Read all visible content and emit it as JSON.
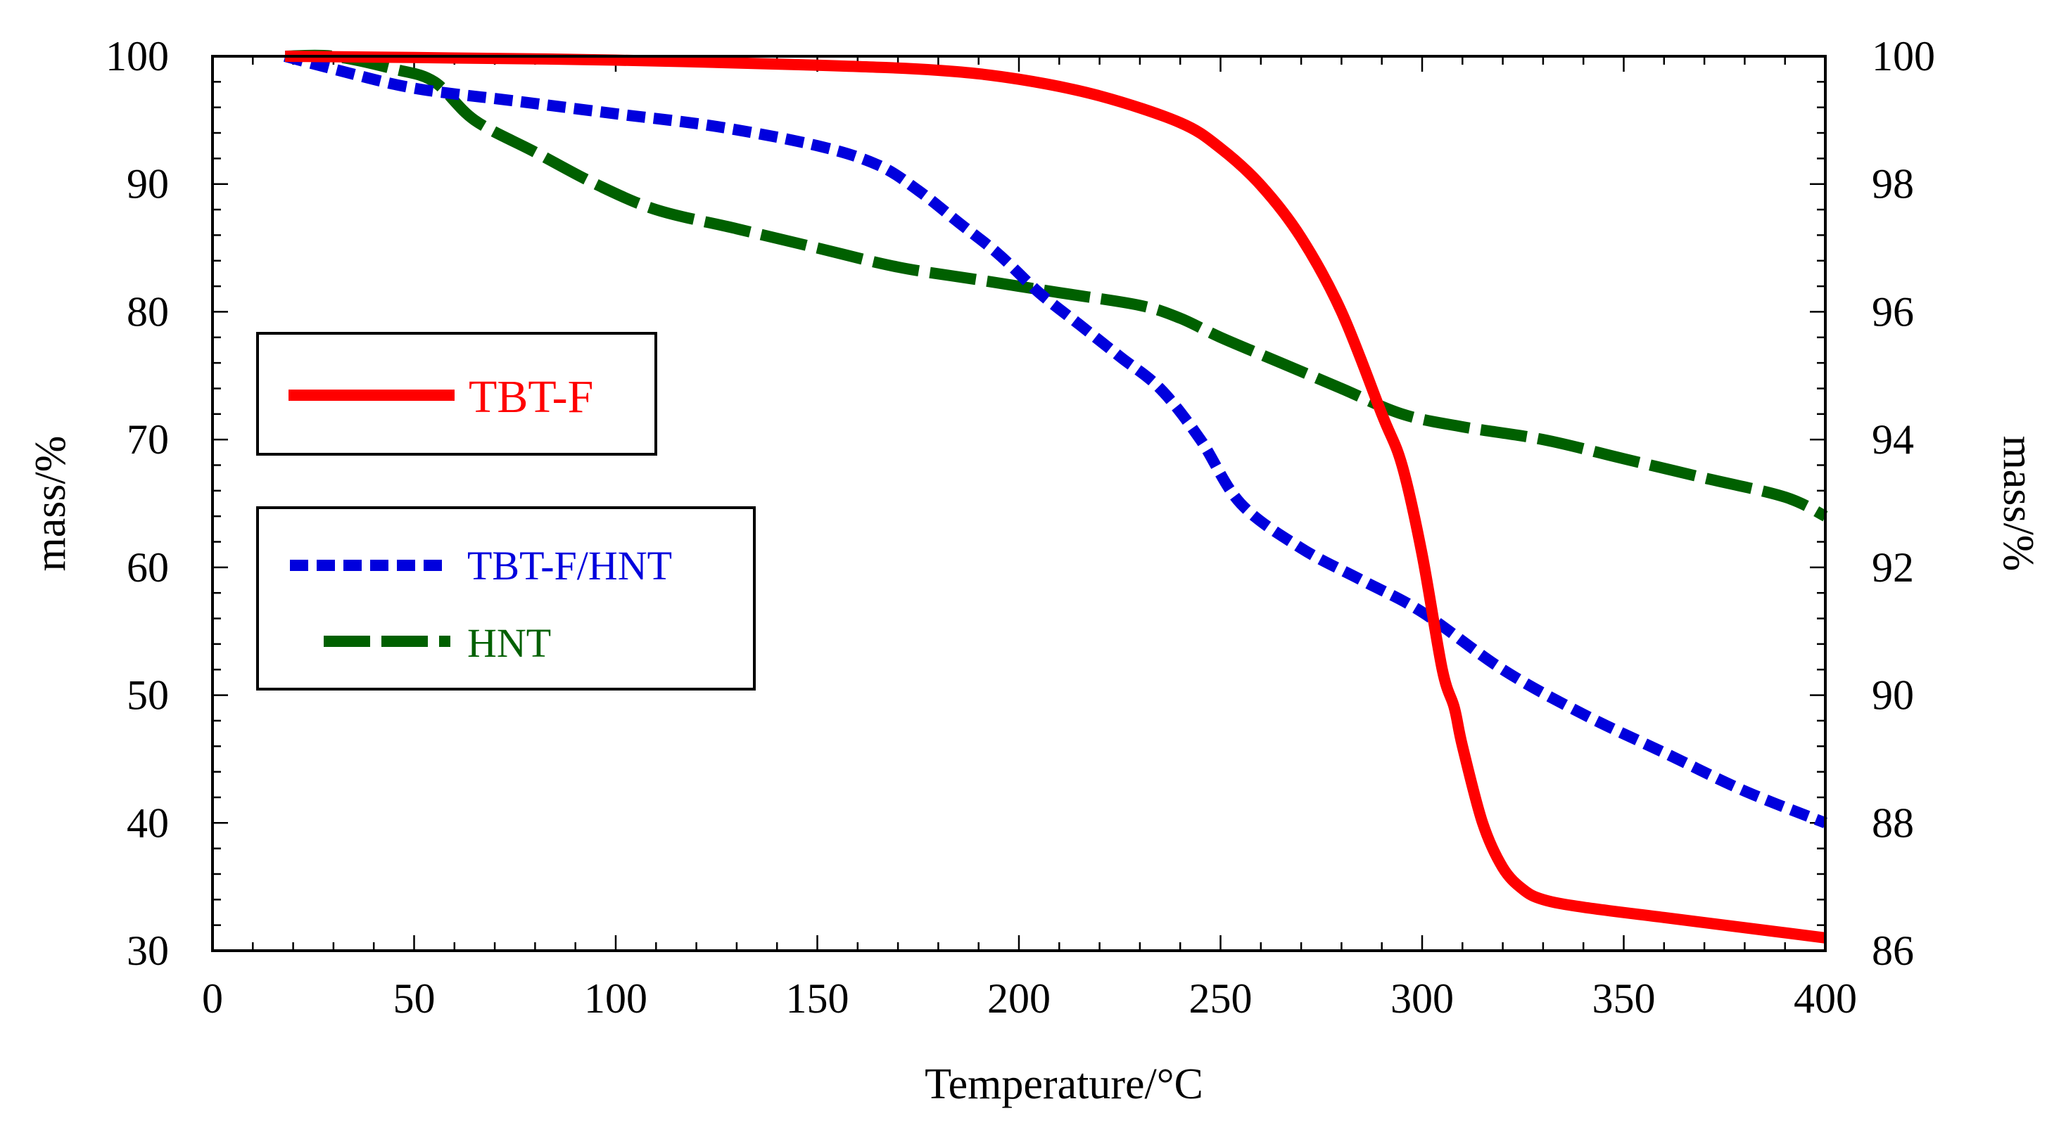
{
  "chart_data": {
    "type": "line",
    "xlabel": "Temperature/°C",
    "ylabel": "mass/%",
    "ylabel_right": "mass/%",
    "xlim": [
      0,
      400
    ],
    "ylim": [
      30,
      100
    ],
    "ylim_right": [
      86,
      100
    ],
    "x_ticks": [
      0,
      50,
      100,
      150,
      200,
      250,
      300,
      350,
      400
    ],
    "y_ticks": [
      30,
      40,
      50,
      60,
      70,
      80,
      90,
      100
    ],
    "y_ticks_right": [
      86,
      88,
      90,
      92,
      94,
      96,
      98,
      100
    ],
    "grid": false,
    "legend": [
      "TBT-F",
      "TBT-F/HNT",
      "HNT"
    ],
    "series": [
      {
        "name": "TBT-F",
        "axis": "left",
        "color": "#ff0000",
        "style": "solid",
        "x": [
          18,
          50,
          100,
          150,
          180,
          200,
          220,
          240,
          250,
          260,
          270,
          280,
          290,
          295,
          300,
          305,
          308,
          310,
          315,
          320,
          325,
          330,
          340,
          360,
          380,
          400
        ],
        "y": [
          100,
          99.9,
          99.7,
          99.3,
          98.9,
          98.2,
          96.9,
          94.8,
          92.8,
          89.9,
          85.8,
          80.0,
          72.0,
          68.0,
          61.0,
          52.0,
          49.0,
          46.0,
          40.0,
          36.5,
          34.8,
          34.0,
          33.4,
          32.6,
          31.8,
          31.0
        ]
      },
      {
        "name": "TBT-F/HNT",
        "axis": "right",
        "color": "#0000dd",
        "style": "dotted",
        "x": [
          18,
          30,
          50,
          75,
          100,
          125,
          150,
          165,
          175,
          185,
          195,
          205,
          215,
          225,
          235,
          245,
          255,
          270,
          285,
          300,
          320,
          340,
          360,
          380,
          400
        ],
        "y": [
          100,
          99.8,
          99.5,
          99.3,
          99.1,
          98.9,
          98.6,
          98.3,
          97.9,
          97.4,
          96.9,
          96.3,
          95.8,
          95.3,
          94.8,
          94.0,
          93.0,
          92.3,
          91.8,
          91.3,
          90.4,
          89.7,
          89.1,
          88.5,
          88.0
        ]
      },
      {
        "name": "HNT",
        "axis": "right",
        "color": "#006000",
        "style": "dashed",
        "x": [
          18,
          30,
          45,
          55,
          65,
          80,
          95,
          110,
          130,
          150,
          170,
          190,
          210,
          230,
          240,
          250,
          265,
          280,
          295,
          310,
          330,
          350,
          370,
          390,
          400
        ],
        "y": [
          100,
          100,
          99.8,
          99.6,
          99.0,
          98.5,
          98.0,
          97.6,
          97.3,
          97.0,
          96.7,
          96.5,
          96.3,
          96.1,
          95.9,
          95.6,
          95.2,
          94.8,
          94.4,
          94.2,
          94.0,
          93.7,
          93.4,
          93.1,
          92.8
        ]
      }
    ]
  }
}
